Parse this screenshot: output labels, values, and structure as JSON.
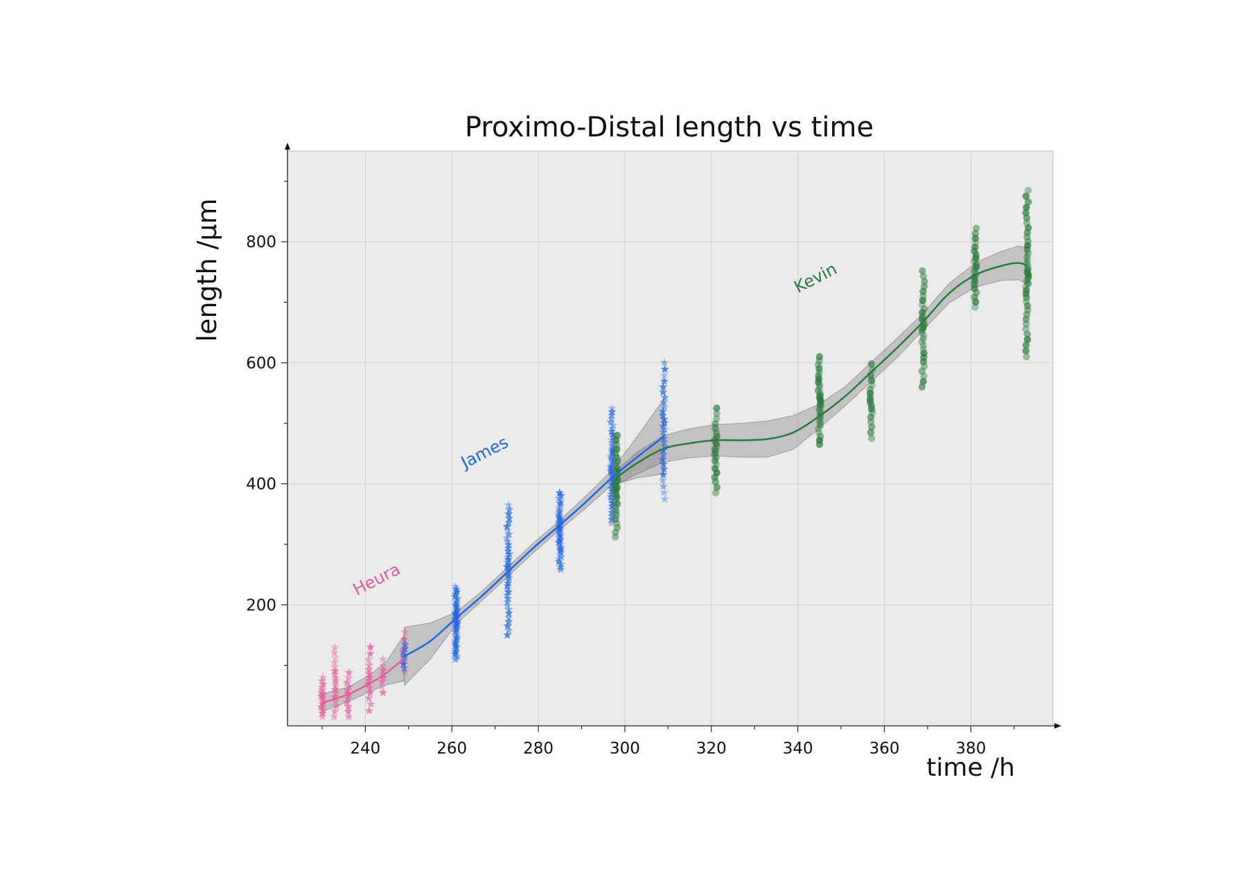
{
  "chart_data": {
    "type": "scatter",
    "title": "Proximo-Distal length vs time",
    "xlabel": "time /h",
    "ylabel": "length /µm",
    "xlim": [
      222,
      399
    ],
    "ylim": [
      0,
      950
    ],
    "xticks": [
      240,
      260,
      280,
      300,
      320,
      340,
      360,
      380
    ],
    "yticks": [
      200,
      400,
      600,
      800
    ],
    "x_minor_step": 10,
    "y_minor_step": 100,
    "grid": true,
    "plot_background": "#ebebeb",
    "band_color": "#777777",
    "series": [
      {
        "name": "Heura",
        "color": "#e8589a",
        "marker": "star",
        "label_at": [
          238,
          215
        ],
        "points": [
          {
            "x": 230,
            "ymin": 15,
            "ymax": 80,
            "n": 16
          },
          {
            "x": 233,
            "ymin": 15,
            "ymax": 130,
            "n": 18
          },
          {
            "x": 236,
            "ymin": 15,
            "ymax": 88,
            "n": 12
          },
          {
            "x": 241,
            "ymin": 25,
            "ymax": 130,
            "n": 14
          },
          {
            "x": 244,
            "ymin": 55,
            "ymax": 110,
            "n": 8
          },
          {
            "x": 249,
            "ymin": 90,
            "ymax": 155,
            "n": 8
          }
        ],
        "fit": [
          [
            230,
            38
          ],
          [
            236,
            52
          ],
          [
            241,
            70
          ],
          [
            245,
            88
          ],
          [
            249,
            112
          ]
        ],
        "band_halfwidth": [
          15,
          12,
          14,
          20,
          38
        ]
      },
      {
        "name": "James",
        "color": "#1f66e5",
        "marker": "star",
        "label_at": [
          263,
          425
        ],
        "points": [
          {
            "x": 249,
            "ymin": 95,
            "ymax": 135,
            "n": 8
          },
          {
            "x": 261,
            "ymin": 110,
            "ymax": 230,
            "n": 40
          },
          {
            "x": 273,
            "ymin": 150,
            "ymax": 365,
            "n": 40
          },
          {
            "x": 285,
            "ymin": 258,
            "ymax": 385,
            "n": 40
          },
          {
            "x": 297,
            "ymin": 335,
            "ymax": 525,
            "n": 45
          },
          {
            "x": 309,
            "ymin": 375,
            "ymax": 600,
            "n": 30
          }
        ],
        "fit": [
          [
            249,
            115
          ],
          [
            255,
            140
          ],
          [
            261,
            178
          ],
          [
            267,
            215
          ],
          [
            273,
            255
          ],
          [
            279,
            295
          ],
          [
            285,
            332
          ],
          [
            291,
            370
          ],
          [
            297,
            410
          ],
          [
            303,
            445
          ],
          [
            309,
            478
          ]
        ],
        "band_halfwidth": [
          48,
          30,
          10,
          8,
          8,
          8,
          8,
          10,
          12,
          35,
          62
        ]
      },
      {
        "name": "Kevin",
        "color": "#2a7a3a",
        "marker": "circle",
        "label_at": [
          340,
          715
        ],
        "points": [
          {
            "x": 298,
            "ymin": 312,
            "ymax": 480,
            "n": 30
          },
          {
            "x": 321,
            "ymin": 385,
            "ymax": 525,
            "n": 22
          },
          {
            "x": 345,
            "ymin": 465,
            "ymax": 610,
            "n": 30
          },
          {
            "x": 357,
            "ymin": 475,
            "ymax": 598,
            "n": 18
          },
          {
            "x": 369,
            "ymin": 560,
            "ymax": 752,
            "n": 30
          },
          {
            "x": 381,
            "ymin": 692,
            "ymax": 822,
            "n": 22
          },
          {
            "x": 393,
            "ymin": 610,
            "ymax": 885,
            "n": 40
          }
        ],
        "fit": [
          [
            298,
            410
          ],
          [
            303,
            435
          ],
          [
            309,
            458
          ],
          [
            315,
            467
          ],
          [
            321,
            472
          ],
          [
            327,
            472
          ],
          [
            333,
            474
          ],
          [
            339,
            485
          ],
          [
            345,
            512
          ],
          [
            351,
            545
          ],
          [
            357,
            585
          ],
          [
            363,
            625
          ],
          [
            369,
            668
          ],
          [
            375,
            715
          ],
          [
            381,
            745
          ],
          [
            387,
            760
          ],
          [
            391,
            765
          ],
          [
            393,
            760
          ]
        ],
        "band_halfwidth": [
          12,
          18,
          22,
          24,
          26,
          28,
          30,
          28,
          20,
          16,
          16,
          16,
          14,
          16,
          20,
          24,
          28,
          30
        ]
      }
    ]
  }
}
